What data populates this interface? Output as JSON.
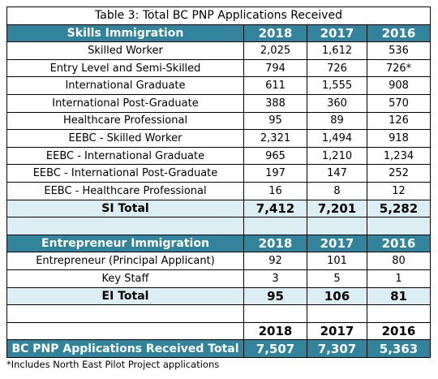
{
  "table": {
    "title": "Table 3: Total BC PNP Applications Received",
    "sections": [
      {
        "header": [
          "Skills Immigration",
          "2018",
          "2017",
          "2016"
        ],
        "rows": [
          [
            "Skilled Worker",
            "2,025",
            "1,612",
            "536"
          ],
          [
            "Entry Level and Semi-Skilled",
            "794",
            "726",
            "726*"
          ],
          [
            "International Graduate",
            "611",
            "1,555",
            "908"
          ],
          [
            "International Post-Graduate",
            "388",
            "360",
            "570"
          ],
          [
            "Healthcare Professional",
            "95",
            "89",
            "126"
          ],
          [
            "EEBC - Skilled Worker",
            "2,321",
            "1,494",
            "918"
          ],
          [
            "EEBC - International Graduate",
            "965",
            "1,210",
            "1,234"
          ],
          [
            "EEBC - International Post-Graduate",
            "197",
            "147",
            "252"
          ],
          [
            "EEBC - Healthcare Professional",
            "16",
            "8",
            "12"
          ]
        ],
        "total": [
          "SI Total",
          "7,412",
          "7,201",
          "5,282"
        ]
      },
      {
        "header": [
          "Entrepreneur Immigration",
          "2018",
          "2017",
          "2016"
        ],
        "rows": [
          [
            "Entrepreneur (Principal Applicant)",
            "92",
            "101",
            "80"
          ],
          [
            "Key Staff",
            "3",
            "5",
            "1"
          ]
        ],
        "total": [
          "EI Total",
          "95",
          "106",
          "81"
        ]
      }
    ],
    "grand": {
      "header": [
        "2018",
        "2017",
        "2016"
      ],
      "total": [
        "BC PNP Applications Received Total",
        "7,507",
        "7,307",
        "5,363"
      ]
    }
  },
  "footnote": "*Includes North East Pilot Project applications"
}
